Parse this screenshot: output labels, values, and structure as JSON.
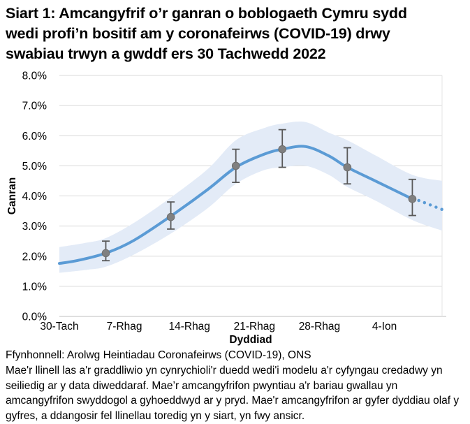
{
  "title": {
    "lines": [
      "Siart 1: Amcangyfrif o’r ganran o boblogaeth Cymru sydd",
      "wedi profi’n bositif am y coronafeirws (COVID-19) drwy",
      "swabiau trwyn a gwddf ers 30 Tachwedd 2022"
    ]
  },
  "chart_data": {
    "type": "line",
    "title": "Siart 1: Amcangyfrif o’r ganran o boblogaeth Cymru sydd wedi profi’n bositif am y coronafeirws (COVID-19) drwy swabiau trwyn a gwddf ers 30 Tachwedd 2022",
    "xlabel": "Dyddiad",
    "ylabel": "Canran",
    "ylim": [
      0,
      8
    ],
    "grid": true,
    "legend": "none",
    "ytick_labels": [
      "0.0%",
      "1.0%",
      "2.0%",
      "3.0%",
      "4.0%",
      "5.0%",
      "6.0%",
      "7.0%",
      "8.0%"
    ],
    "xticks": [
      {
        "label": "30-Tach",
        "day": 0
      },
      {
        "label": "7-Rhag",
        "day": 7
      },
      {
        "label": "14-Rhag",
        "day": 14
      },
      {
        "label": "21-Rhag",
        "day": 21
      },
      {
        "label": "28-Rhag",
        "day": 28
      },
      {
        "label": "4-Ion",
        "day": 35
      }
    ],
    "x_range_days": [
      0,
      41.2
    ],
    "trend_line_pct": [
      [
        0,
        1.76
      ],
      [
        2,
        1.86
      ],
      [
        5,
        2.1
      ],
      [
        8,
        2.52
      ],
      [
        12,
        3.33
      ],
      [
        16,
        4.22
      ],
      [
        19,
        4.95
      ],
      [
        22,
        5.38
      ],
      [
        24,
        5.55
      ],
      [
        26.5,
        5.64
      ],
      [
        29,
        5.33
      ],
      [
        31,
        4.95
      ],
      [
        34,
        4.5
      ],
      [
        38,
        3.9
      ]
    ],
    "dotted_line_pct": [
      [
        38.7,
        3.85
      ],
      [
        41.2,
        3.55
      ]
    ],
    "confidence_band_pct": [
      [
        0,
        1.45,
        2.3
      ],
      [
        3,
        1.55,
        2.45
      ],
      [
        5,
        1.65,
        2.6
      ],
      [
        8,
        2.05,
        3.1
      ],
      [
        12,
        2.75,
        3.95
      ],
      [
        16,
        3.6,
        4.9
      ],
      [
        19,
        4.4,
        5.85
      ],
      [
        22,
        4.85,
        6.25
      ],
      [
        24,
        4.95,
        6.4
      ],
      [
        26.5,
        5.0,
        6.45
      ],
      [
        29,
        4.7,
        6.1
      ],
      [
        31,
        4.3,
        5.85
      ],
      [
        34,
        3.85,
        5.35
      ],
      [
        38,
        3.2,
        4.7
      ],
      [
        41.2,
        2.85,
        4.5
      ]
    ],
    "point_estimates": [
      {
        "day": 5,
        "value": 2.1,
        "lower": 1.85,
        "upper": 2.5
      },
      {
        "day": 12,
        "value": 3.3,
        "lower": 2.9,
        "upper": 3.8
      },
      {
        "day": 19,
        "value": 5.0,
        "lower": 4.45,
        "upper": 5.55
      },
      {
        "day": 24,
        "value": 5.55,
        "lower": 4.95,
        "upper": 6.2
      },
      {
        "day": 31,
        "value": 4.95,
        "lower": 4.4,
        "upper": 5.6
      },
      {
        "day": 38,
        "value": 3.9,
        "lower": 3.35,
        "upper": 4.55
      }
    ],
    "colors": {
      "trend": "#5B9BD5",
      "band": "#E3EBF7",
      "point": "#808080",
      "error_bar": "#595959",
      "gridline": "#D9D9D9",
      "axis_line": "#BFBFBF",
      "right_border": "#E4E4E4",
      "text": "#000000"
    }
  },
  "footnote": {
    "source": "Ffynhonnell: Arolwg Heintiadau Coronafeirws (COVID-19), ONS",
    "note_lines": [
      "Mae'r llinell las a'r graddliwio yn cynrychioli'r duedd wedi'i modelu a'r cyfyngau credadwy yn",
      "seiliedig ar y data diweddaraf. Mae’r amcangyfrifon pwyntiau a'r bariau gwallau yn",
      "amcangyfrifon swyddogol a gyhoeddwyd ar y pryd. Mae'r amcangyfrifon ar gyfer dyddiau olaf y",
      "gyfres, a ddangosir fel llinellau toredig yn y siart, yn fwy ansicr."
    ]
  }
}
